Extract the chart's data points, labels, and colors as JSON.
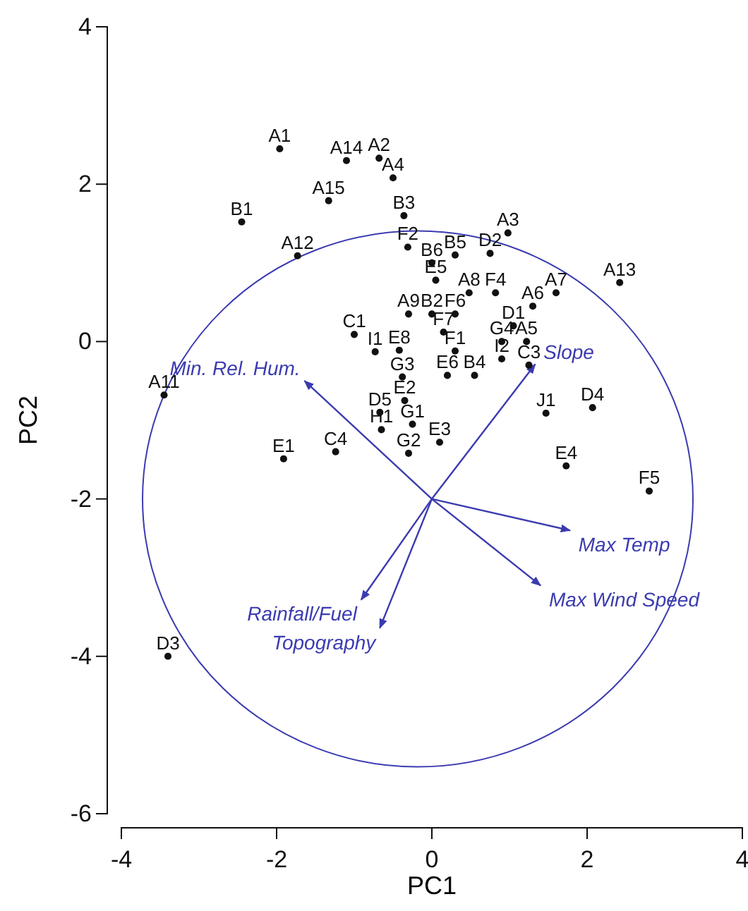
{
  "chart_data": {
    "type": "line",
    "xlabel": "PC1",
    "ylabel": "PC2",
    "xlim": [
      -4,
      4
    ],
    "ylim": [
      -6,
      4
    ],
    "xticks": [
      -4,
      -2,
      0,
      2,
      4
    ],
    "yticks": [
      -6,
      -4,
      -2,
      0,
      2,
      4
    ],
    "series": [
      {
        "name": "Min. Rel. Hum.",
        "color": "#3b3bb0",
        "x": [
          0,
          -1.64
        ],
        "values": [
          -2,
          -0.5
        ]
      },
      {
        "name": "Slope",
        "color": "#3b3bb0",
        "x": [
          0,
          1.33
        ],
        "values": [
          -2,
          -0.29
        ]
      },
      {
        "name": "Max Temp",
        "color": "#3b3bb0",
        "x": [
          0,
          1.78
        ],
        "values": [
          -2,
          -2.4
        ]
      },
      {
        "name": "Max Wind Speed",
        "color": "#3b3bb0",
        "x": [
          0,
          1.4
        ],
        "values": [
          -2,
          -3.1
        ]
      },
      {
        "name": "Rainfall/Fuel",
        "color": "#3b3bb0",
        "x": [
          0,
          -0.91
        ],
        "values": [
          -2,
          -3.28
        ]
      },
      {
        "name": "Topography",
        "color": "#3b3bb0",
        "x": [
          0,
          -0.67
        ],
        "values": [
          -2,
          -3.64
        ]
      },
      {
        "type": "scatter",
        "marker": "circle",
        "color": "#111111",
        "x": [
          -1.96,
          -1.1,
          -0.68,
          -0.5,
          -1.33,
          -2.45,
          -1.73,
          -0.36,
          -0.31,
          0.75,
          0.98,
          0.3,
          0.0,
          0.05,
          0.48,
          0.82,
          2.42,
          1.3,
          1.6,
          1.05,
          -0.3,
          0.0,
          0.3,
          0.15,
          0.3,
          -1.0,
          -0.73,
          -0.42,
          -0.38,
          0.2,
          0.55,
          0.9,
          1.22,
          0.9,
          1.25,
          -0.67,
          -0.35,
          -0.65,
          -0.25,
          -0.3,
          0.1,
          -1.24,
          -1.91,
          -3.45,
          1.47,
          2.07,
          1.73,
          2.8,
          -3.4
        ],
        "values": [
          2.45,
          2.3,
          2.33,
          2.08,
          1.79,
          1.52,
          1.09,
          1.6,
          1.2,
          1.12,
          1.38,
          1.1,
          1.0,
          0.78,
          0.62,
          0.62,
          0.75,
          0.45,
          0.62,
          0.2,
          0.35,
          0.35,
          0.35,
          0.12,
          -0.12,
          0.09,
          -0.13,
          -0.11,
          -0.45,
          -0.43,
          -0.43,
          0.0,
          0.0,
          -0.22,
          -0.3,
          -0.9,
          -0.75,
          -1.12,
          -1.05,
          -1.42,
          -1.28,
          -1.4,
          -1.49,
          -0.68,
          -0.91,
          -0.84,
          -1.58,
          -1.9,
          -4.0
        ],
        "value_labels": [
          "A1",
          "A14",
          "A2",
          "A4",
          "A15",
          "B1",
          "A12",
          "B3",
          "F2",
          "D2",
          "A3",
          "B5",
          "B6",
          "E5",
          "A8",
          "F4",
          "A13",
          "A6",
          "A7",
          "D1",
          "A9",
          "B2",
          "F6",
          "F7",
          "F1",
          "C1",
          "I1",
          "E8",
          "G3",
          "E6",
          "B4",
          "G4",
          "A5",
          "I2",
          "C3",
          "D5",
          "E2",
          "H1",
          "G1",
          "G2",
          "E3",
          "C4",
          "E1",
          "A11",
          "J1",
          "D4",
          "E4",
          "F5",
          "D3"
        ]
      }
    ]
  }
}
